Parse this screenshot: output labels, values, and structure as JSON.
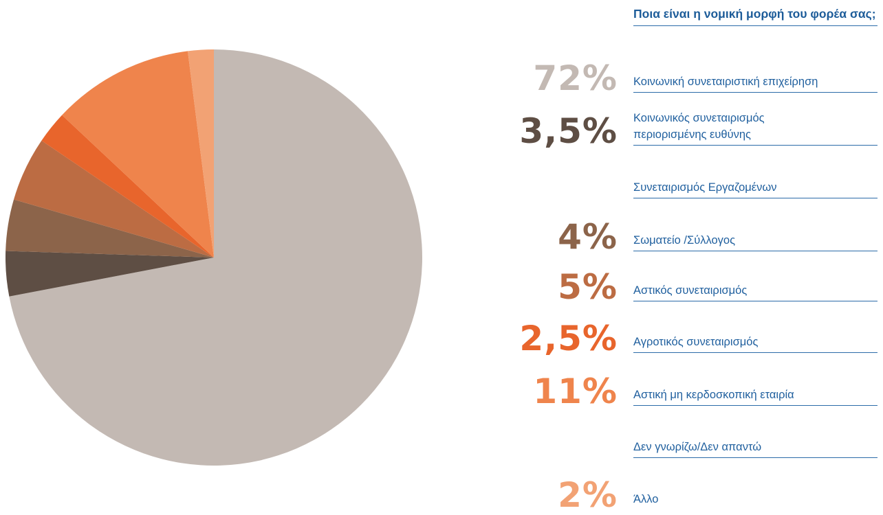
{
  "chart_data": {
    "type": "pie",
    "title": "Ποια είναι η νομική μορφή του φορέα σας;",
    "categories": [
      "Κοινωνική συνεταιριστική επιχείρηση",
      "Κοινωνικός συνεταιρισμός περιορισμένης ευθύνης",
      "Συνεταιρισμός Εργαζομένων",
      "Σωματείο /Σύλλογος",
      "Αστικός συνεταιρισμός",
      "Αγροτικός συνεταιρισμός",
      "Αστική μη κερδοσκοπική εταιρία",
      "Δεν γνωρίζω/Δεν απαντώ",
      "Άλλο"
    ],
    "values": [
      72,
      3.5,
      null,
      4,
      5,
      2.5,
      11,
      null,
      2
    ],
    "value_labels": [
      "72%",
      "3,5%",
      null,
      "4%",
      "5%",
      "2,5%",
      "11%",
      null,
      "2%"
    ],
    "colors": [
      "#c3b9b3",
      "#5e4e44",
      null,
      "#8c644a",
      "#bc6c43",
      "#e8652c",
      "#ef844c",
      null,
      "#f2a274"
    ]
  }
}
